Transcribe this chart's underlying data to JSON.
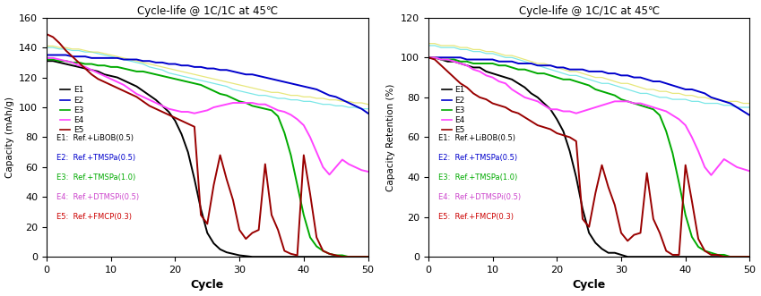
{
  "title": "Cycle-life @ 1C/1C at 45℃",
  "xlabel": "Cycle",
  "ylabel1": "Capacity (mAh/g)",
  "ylabel2": "Capacity Retention (%)",
  "xlim": [
    0,
    50
  ],
  "ylim1": [
    0,
    160
  ],
  "ylim2": [
    0,
    120
  ],
  "yticks1": [
    0,
    20,
    40,
    60,
    80,
    100,
    120,
    140,
    160
  ],
  "yticks2": [
    0,
    20,
    40,
    60,
    80,
    100,
    120
  ],
  "colors": {
    "E1": "#000000",
    "E2": "#0000cc",
    "E3": "#00aa00",
    "E4": "#ff44ff",
    "E5": "#990000",
    "E_cyan": "#44dddd",
    "E_yellow": "#dddd44"
  },
  "legend_labels": [
    "E1",
    "E2",
    "E3",
    "E4",
    "E5"
  ],
  "legend_text": [
    "E1:  Ref.+LiBOB(0.5)",
    "E2:  Ref.+TMSPa(0.5)",
    "E3:  Ref.+TMSPa(1.0)",
    "E4:  Ref.+DTMSPi(0.5)",
    "E5:  Ref.+FMCP(0.3)"
  ],
  "legend_colors": [
    "#000000",
    "#0000cc",
    "#00aa00",
    "#ff44ff",
    "#990000"
  ],
  "legend_text_colors": [
    "#000000",
    "#0000cc",
    "#00aa00",
    "#cc44cc",
    "#cc0000"
  ],
  "cycles": [
    0,
    1,
    2,
    3,
    4,
    5,
    6,
    7,
    8,
    9,
    10,
    11,
    12,
    13,
    14,
    15,
    16,
    17,
    18,
    19,
    20,
    21,
    22,
    23,
    24,
    25,
    26,
    27,
    28,
    29,
    30,
    31,
    32,
    33,
    34,
    35,
    36,
    37,
    38,
    39,
    40,
    41,
    42,
    43,
    44,
    45,
    46,
    47,
    48,
    49,
    50
  ],
  "E1_cap": [
    131,
    131,
    130,
    129,
    128,
    127,
    126,
    125,
    124,
    122,
    121,
    120,
    118,
    116,
    114,
    111,
    108,
    105,
    101,
    97,
    91,
    82,
    70,
    52,
    32,
    16,
    9,
    5,
    3,
    2,
    1,
    0.5,
    0,
    0,
    0,
    0,
    0,
    0,
    0,
    0,
    0,
    0,
    0,
    0,
    0,
    0,
    0,
    0,
    0,
    0,
    0
  ],
  "E2_cap": [
    135,
    135,
    135,
    135,
    134,
    134,
    134,
    133,
    133,
    133,
    133,
    133,
    132,
    132,
    132,
    131,
    131,
    130,
    130,
    129,
    129,
    128,
    128,
    127,
    127,
    126,
    126,
    125,
    125,
    124,
    123,
    122,
    122,
    121,
    120,
    119,
    118,
    117,
    116,
    115,
    114,
    113,
    112,
    110,
    108,
    107,
    105,
    103,
    101,
    99,
    96
  ],
  "E3_cap": [
    132,
    132,
    131,
    131,
    130,
    130,
    129,
    129,
    128,
    128,
    127,
    127,
    126,
    125,
    124,
    124,
    123,
    122,
    121,
    120,
    119,
    118,
    117,
    116,
    115,
    113,
    111,
    109,
    108,
    106,
    104,
    103,
    101,
    100,
    99,
    98,
    94,
    83,
    68,
    48,
    28,
    13,
    7,
    4,
    2,
    1,
    1,
    0,
    0,
    0,
    0
  ],
  "E4_cap": [
    133,
    133,
    132,
    131,
    130,
    128,
    127,
    125,
    123,
    121,
    119,
    117,
    115,
    112,
    109,
    107,
    105,
    103,
    101,
    99,
    98,
    97,
    97,
    96,
    97,
    98,
    100,
    101,
    102,
    103,
    103,
    103,
    103,
    102,
    102,
    100,
    98,
    97,
    95,
    92,
    88,
    80,
    70,
    60,
    55,
    60,
    65,
    62,
    60,
    58,
    57
  ],
  "E5_cap": [
    149,
    147,
    143,
    138,
    134,
    130,
    126,
    122,
    119,
    117,
    115,
    113,
    111,
    109,
    107,
    104,
    101,
    99,
    97,
    95,
    93,
    91,
    89,
    87,
    28,
    22,
    48,
    68,
    52,
    38,
    18,
    12,
    16,
    18,
    62,
    28,
    18,
    4,
    2,
    1,
    68,
    42,
    13,
    4,
    2,
    1,
    0,
    0,
    0,
    0,
    0
  ],
  "E_cyan_cap": [
    140,
    140,
    139,
    139,
    138,
    138,
    137,
    137,
    136,
    135,
    134,
    133,
    132,
    131,
    130,
    129,
    127,
    126,
    125,
    123,
    122,
    121,
    120,
    119,
    118,
    117,
    116,
    115,
    114,
    112,
    111,
    110,
    109,
    108,
    108,
    107,
    106,
    106,
    105,
    105,
    104,
    104,
    103,
    102,
    102,
    101,
    101,
    100,
    100,
    99,
    99
  ],
  "E_yellow_cap": [
    141,
    141,
    140,
    140,
    139,
    139,
    138,
    137,
    137,
    136,
    135,
    134,
    133,
    132,
    131,
    130,
    129,
    128,
    127,
    126,
    125,
    124,
    123,
    122,
    121,
    120,
    119,
    118,
    117,
    116,
    115,
    114,
    113,
    112,
    111,
    110,
    110,
    109,
    108,
    108,
    107,
    107,
    106,
    106,
    105,
    105,
    104,
    104,
    103,
    103,
    102
  ],
  "E1_ret": [
    100,
    100,
    99,
    98,
    98,
    97,
    96,
    95,
    95,
    93,
    92,
    91,
    90,
    89,
    87,
    85,
    82,
    80,
    77,
    74,
    69,
    63,
    53,
    40,
    24,
    12,
    7,
    4,
    2,
    2,
    1,
    0,
    0,
    0,
    0,
    0,
    0,
    0,
    0,
    0,
    0,
    0,
    0,
    0,
    0,
    0,
    0,
    0,
    0,
    0,
    0
  ],
  "E2_ret": [
    100,
    100,
    100,
    100,
    100,
    100,
    99,
    99,
    99,
    99,
    99,
    98,
    98,
    98,
    97,
    97,
    97,
    96,
    96,
    96,
    95,
    95,
    94,
    94,
    94,
    93,
    93,
    93,
    92,
    92,
    91,
    91,
    90,
    90,
    89,
    88,
    88,
    87,
    86,
    85,
    84,
    84,
    83,
    82,
    80,
    79,
    78,
    77,
    75,
    73,
    71
  ],
  "E3_ret": [
    100,
    100,
    99,
    99,
    99,
    98,
    98,
    97,
    97,
    97,
    97,
    96,
    96,
    95,
    94,
    94,
    93,
    92,
    92,
    91,
    90,
    89,
    89,
    88,
    87,
    86,
    84,
    83,
    82,
    81,
    79,
    78,
    77,
    76,
    75,
    74,
    71,
    63,
    52,
    37,
    21,
    10,
    5,
    3,
    2,
    1,
    1,
    0,
    0,
    0,
    0
  ],
  "E4_ret": [
    100,
    100,
    99,
    99,
    98,
    97,
    96,
    94,
    93,
    91,
    90,
    88,
    87,
    84,
    82,
    80,
    79,
    78,
    76,
    74,
    74,
    73,
    73,
    72,
    73,
    74,
    75,
    76,
    77,
    78,
    78,
    78,
    77,
    77,
    76,
    75,
    74,
    73,
    71,
    69,
    66,
    60,
    53,
    45,
    41,
    45,
    49,
    47,
    45,
    44,
    43
  ],
  "E5_ret": [
    100,
    99,
    96,
    93,
    90,
    87,
    85,
    82,
    80,
    79,
    77,
    76,
    75,
    73,
    72,
    70,
    68,
    66,
    65,
    64,
    62,
    61,
    60,
    58,
    19,
    15,
    32,
    46,
    35,
    26,
    12,
    8,
    11,
    12,
    42,
    19,
    12,
    3,
    1,
    1,
    46,
    28,
    9,
    3,
    1,
    1,
    0,
    0,
    0,
    0,
    0
  ],
  "E_cyan_ret": [
    106,
    106,
    105,
    105,
    105,
    104,
    104,
    103,
    103,
    102,
    102,
    101,
    100,
    100,
    99,
    98,
    97,
    96,
    95,
    94,
    93,
    92,
    91,
    91,
    90,
    89,
    88,
    87,
    87,
    86,
    85,
    84,
    83,
    82,
    82,
    81,
    80,
    80,
    79,
    79,
    79,
    78,
    78,
    77,
    77,
    77,
    76,
    76,
    75,
    75,
    75
  ],
  "E_yellow_ret": [
    107,
    107,
    106,
    106,
    106,
    105,
    105,
    104,
    104,
    103,
    103,
    102,
    101,
    101,
    100,
    99,
    98,
    97,
    97,
    96,
    95,
    94,
    93,
    93,
    92,
    91,
    90,
    90,
    89,
    88,
    87,
    87,
    86,
    85,
    84,
    84,
    83,
    83,
    82,
    82,
    81,
    81,
    80,
    80,
    79,
    79,
    78,
    78,
    78,
    77,
    77
  ]
}
